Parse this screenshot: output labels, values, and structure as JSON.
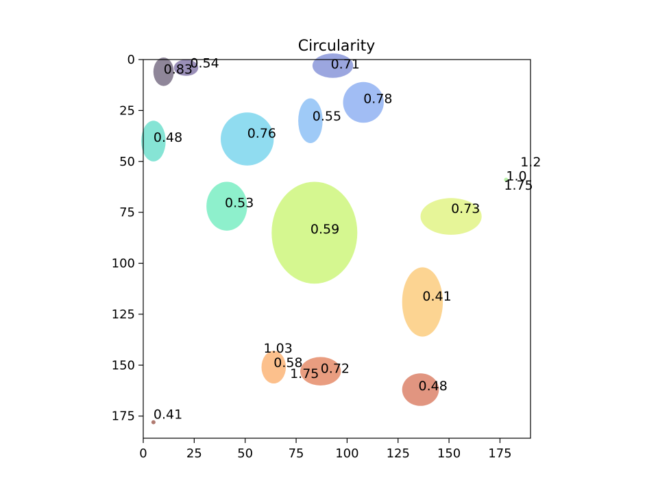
{
  "chart_data": {
    "type": "scatter",
    "title": "Circularity",
    "xlabel": "",
    "ylabel": "",
    "xlim": [
      0,
      190
    ],
    "ylim": [
      0,
      186
    ],
    "y_inverted": true,
    "grid": false,
    "xticks": [
      0,
      25,
      50,
      75,
      100,
      125,
      150,
      175
    ],
    "yticks": [
      0,
      25,
      50,
      75,
      100,
      125,
      150,
      175
    ],
    "labels": [
      {
        "x": 10,
        "y": 4.5,
        "text": "0.83"
      },
      {
        "x": 23,
        "y": 1.5,
        "text": "0.54"
      },
      {
        "x": 92,
        "y": 2,
        "text": "0.71"
      },
      {
        "x": 108,
        "y": 19,
        "text": "0.78"
      },
      {
        "x": 83,
        "y": 27.5,
        "text": "0.55"
      },
      {
        "x": 51,
        "y": 36,
        "text": "0.76"
      },
      {
        "x": 5,
        "y": 38,
        "text": "0.48"
      },
      {
        "x": 185,
        "y": 50,
        "text": "1.2"
      },
      {
        "x": 178,
        "y": 57,
        "text": "1.0"
      },
      {
        "x": 177,
        "y": 61.5,
        "text": "1.75"
      },
      {
        "x": 40,
        "y": 70,
        "text": "0.53"
      },
      {
        "x": 151,
        "y": 73,
        "text": "0.73"
      },
      {
        "x": 82,
        "y": 83,
        "text": "0.59"
      },
      {
        "x": 137,
        "y": 116,
        "text": "0.41"
      },
      {
        "x": 59,
        "y": 141.5,
        "text": "1.03"
      },
      {
        "x": 64,
        "y": 148.5,
        "text": "0.58"
      },
      {
        "x": 87,
        "y": 151.5,
        "text": "0.72"
      },
      {
        "x": 72,
        "y": 154,
        "text": "1.75"
      },
      {
        "x": 135,
        "y": 160,
        "text": "0.48"
      },
      {
        "x": 5,
        "y": 174,
        "text": "0.41"
      }
    ],
    "regions": [
      {
        "cx": 10,
        "cy": 6,
        "rx": 5,
        "ry": 7,
        "color": "#8f8699"
      },
      {
        "cx": 21,
        "cy": 4,
        "rx": 6,
        "ry": 4,
        "color": "#9a8fb8"
      },
      {
        "cx": 93,
        "cy": 3,
        "rx": 10,
        "ry": 6,
        "color": "#9ba6df"
      },
      {
        "cx": 108,
        "cy": 21,
        "rx": 10,
        "ry": 10,
        "color": "#a1bdf4"
      },
      {
        "cx": 82,
        "cy": 30,
        "rx": 6,
        "ry": 11,
        "color": "#9fcaf7"
      },
      {
        "cx": 51,
        "cy": 39,
        "rx": 13,
        "ry": 13,
        "color": "#90dcf0"
      },
      {
        "cx": 5,
        "cy": 40,
        "rx": 6,
        "ry": 10,
        "color": "#86e4d5"
      },
      {
        "cx": 178,
        "cy": 59,
        "rx": 1,
        "ry": 1,
        "color": "#b8f0a8"
      },
      {
        "cx": 41,
        "cy": 72,
        "rx": 10,
        "ry": 12,
        "color": "#8ef0cc"
      },
      {
        "cx": 151,
        "cy": 77,
        "rx": 15,
        "ry": 9,
        "color": "#e6f598"
      },
      {
        "cx": 84,
        "cy": 85,
        "rx": 21,
        "ry": 25,
        "color": "#d5f790"
      },
      {
        "cx": 137,
        "cy": 119,
        "rx": 10,
        "ry": 17,
        "color": "#fcd492"
      },
      {
        "cx": 64,
        "cy": 151,
        "rx": 6,
        "ry": 8,
        "color": "#fcc08c"
      },
      {
        "cx": 87,
        "cy": 153,
        "rx": 10,
        "ry": 7,
        "color": "#e99d80"
      },
      {
        "cx": 136,
        "cy": 162,
        "rx": 9,
        "ry": 8,
        "color": "#e19580"
      },
      {
        "cx": 5,
        "cy": 178,
        "rx": 1,
        "ry": 1,
        "color": "#b07a70"
      }
    ]
  }
}
